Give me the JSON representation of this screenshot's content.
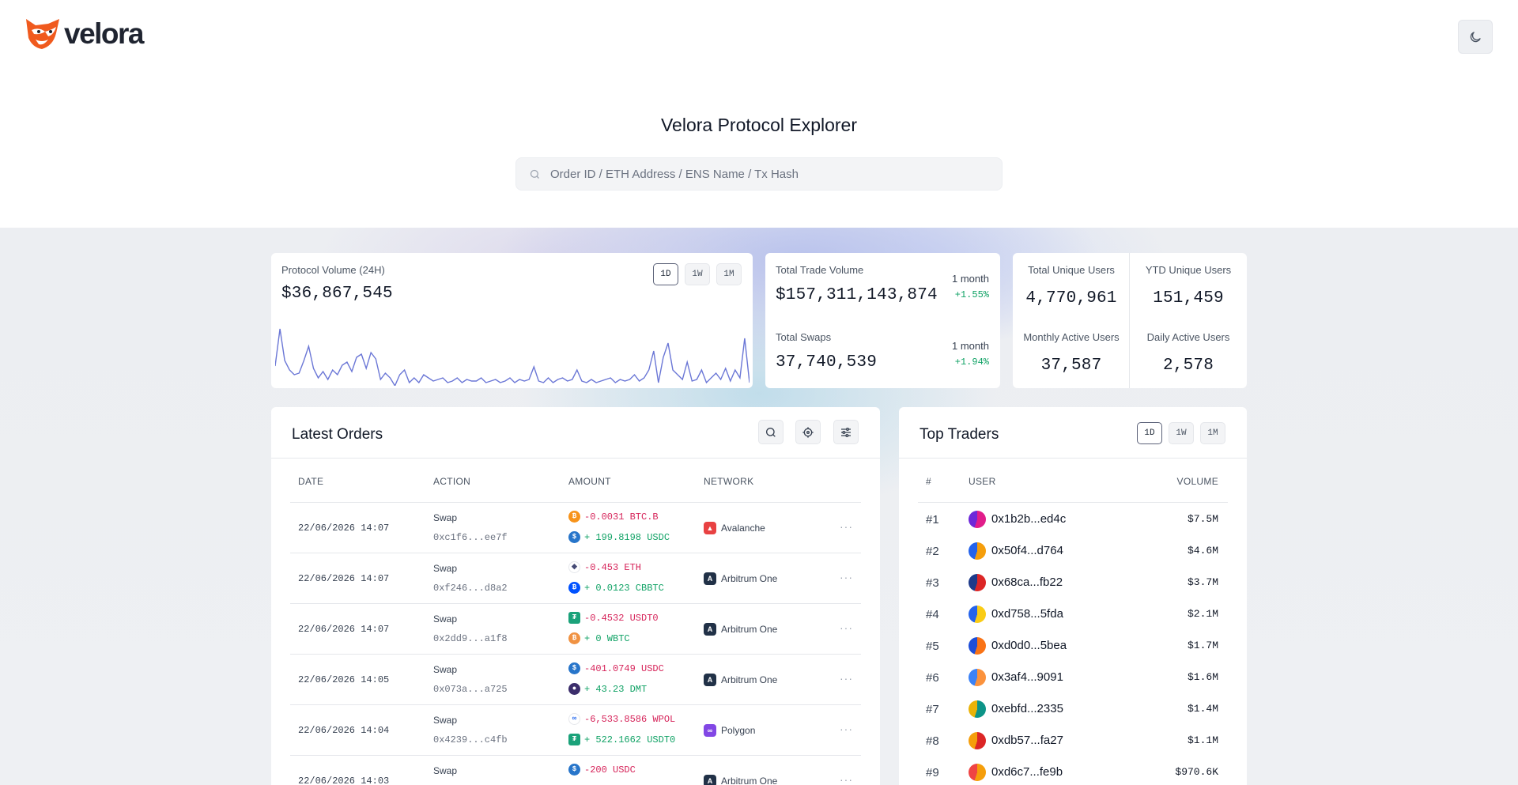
{
  "brand": {
    "name": "velora"
  },
  "hero": {
    "title": "Velora Protocol Explorer",
    "search_placeholder": "Order ID / ETH Address / ENS Name / Tx Hash"
  },
  "protocol_volume": {
    "label": "Protocol Volume (24H)",
    "value": "$36,867,545",
    "timeframes": [
      "1D",
      "1W",
      "1M"
    ],
    "active_timeframe": "1D",
    "sparkline": [
      55,
      8,
      48,
      60,
      66,
      64,
      48,
      30,
      58,
      70,
      62,
      72,
      60,
      66,
      54,
      50,
      62,
      44,
      40,
      58,
      38,
      46,
      72,
      64,
      70,
      80,
      66,
      60,
      76,
      70,
      76,
      66,
      70,
      74,
      72,
      70,
      76,
      74,
      70,
      76,
      72,
      74,
      74,
      70,
      76,
      74,
      72,
      76,
      74,
      70,
      76,
      72,
      74,
      72,
      56,
      74,
      76,
      70,
      76,
      72,
      70,
      74,
      72,
      60,
      74,
      76,
      72,
      76,
      74,
      72,
      70,
      76,
      72,
      74,
      72,
      66,
      74,
      70,
      60,
      36,
      76,
      44,
      26,
      60,
      66,
      72,
      50,
      74,
      72,
      60,
      76,
      70,
      64,
      72,
      58,
      74,
      60,
      70,
      20,
      76
    ]
  },
  "trade_volume": {
    "rows": [
      {
        "label": "Total Trade Volume",
        "value": "$157,311,143,874",
        "period": "1 month",
        "change": "+1.55%"
      },
      {
        "label": "Total Swaps",
        "value": "37,740,539",
        "period": "1 month",
        "change": "+1.94%"
      }
    ]
  },
  "users": {
    "cells": [
      {
        "label": "Total Unique Users",
        "value": "4,770,961"
      },
      {
        "label": "YTD Unique Users",
        "value": "151,459"
      },
      {
        "label": "Monthly Active Users",
        "value": "37,587"
      },
      {
        "label": "Daily Active Users",
        "value": "2,578"
      }
    ]
  },
  "latest_orders": {
    "title": "Latest Orders",
    "columns": [
      "DATE",
      "ACTION",
      "AMOUNT",
      "NETWORK"
    ],
    "rows": [
      {
        "date": "22/06/2026 14:07",
        "action": "Swap",
        "tx": "0xc1f6...ee7f",
        "out": "-0.0031 BTC.B",
        "in": "+ 199.8198 USDC",
        "out_icon": "btc-icon",
        "in_icon": "usdc-icon",
        "network": "Avalanche",
        "net_icon": "avalanche-icon"
      },
      {
        "date": "22/06/2026 14:07",
        "action": "Swap",
        "tx": "0xf246...d8a2",
        "out": "-0.453 ETH",
        "in": "+ 0.0123 CBBTC",
        "out_icon": "eth-icon",
        "in_icon": "cbbtc-icon",
        "network": "Arbitrum One",
        "net_icon": "arbitrum-icon"
      },
      {
        "date": "22/06/2026 14:07",
        "action": "Swap",
        "tx": "0x2dd9...a1f8",
        "out": "-0.4532 USDT0",
        "in": "+ 0 WBTC",
        "out_icon": "usdt0-icon",
        "in_icon": "wbtc-icon",
        "network": "Arbitrum One",
        "net_icon": "arbitrum-icon"
      },
      {
        "date": "22/06/2026 14:05",
        "action": "Swap",
        "tx": "0x073a...a725",
        "out": "-401.0749 USDC",
        "in": "+ 43.23 DMT",
        "out_icon": "usdc-icon",
        "in_icon": "dmt-icon",
        "network": "Arbitrum One",
        "net_icon": "arbitrum-icon"
      },
      {
        "date": "22/06/2026 14:04",
        "action": "Swap",
        "tx": "0x4239...c4fb",
        "out": "-6,533.8586 WPOL",
        "in": "+ 522.1662 USDT0",
        "out_icon": "wpol-icon",
        "in_icon": "usdt0-icon",
        "network": "Polygon",
        "net_icon": "polygon-icon"
      },
      {
        "date": "22/06/2026 14:03",
        "action": "Swap",
        "tx": "",
        "out": "-200 USDC",
        "in": "",
        "out_icon": "usdc-icon",
        "in_icon": "",
        "network": "Arbitrum One",
        "net_icon": "arbitrum-icon"
      }
    ]
  },
  "top_traders": {
    "title": "Top Traders",
    "timeframes": [
      "1D",
      "1W",
      "1M"
    ],
    "active_timeframe": "1D",
    "columns": [
      "#",
      "USER",
      "VOLUME"
    ],
    "rows": [
      {
        "rank": "#1",
        "user": "0x1b2b...ed4c",
        "volume": "$7.5M",
        "colors": [
          "#e11d8a",
          "#6d28d9"
        ]
      },
      {
        "rank": "#2",
        "user": "0x50f4...d764",
        "volume": "$4.6M",
        "colors": [
          "#f59e0b",
          "#2563eb"
        ]
      },
      {
        "rank": "#3",
        "user": "0x68ca...fb22",
        "volume": "$3.7M",
        "colors": [
          "#dc2626",
          "#1e3a8a"
        ]
      },
      {
        "rank": "#4",
        "user": "0xd758...5fda",
        "volume": "$2.1M",
        "colors": [
          "#facc15",
          "#2563eb"
        ]
      },
      {
        "rank": "#5",
        "user": "0xd0d0...5bea",
        "volume": "$1.7M",
        "colors": [
          "#f97316",
          "#1d4ed8"
        ]
      },
      {
        "rank": "#6",
        "user": "0x3af4...9091",
        "volume": "$1.6M",
        "colors": [
          "#fb923c",
          "#3b82f6"
        ]
      },
      {
        "rank": "#7",
        "user": "0xebfd...2335",
        "volume": "$1.4M",
        "colors": [
          "#0d9488",
          "#eab308"
        ]
      },
      {
        "rank": "#8",
        "user": "0xdb57...fa27",
        "volume": "$1.1M",
        "colors": [
          "#dc2626",
          "#f59e0b"
        ]
      },
      {
        "rank": "#9",
        "user": "0xd6c7...fe9b",
        "volume": "$970.6K",
        "colors": [
          "#f59e0b",
          "#ef4444"
        ]
      }
    ]
  },
  "colors": {
    "accent": "#6b77d6",
    "positive": "#10a265",
    "negative": "#d6245a",
    "brand_orange": "#f05a1e"
  }
}
